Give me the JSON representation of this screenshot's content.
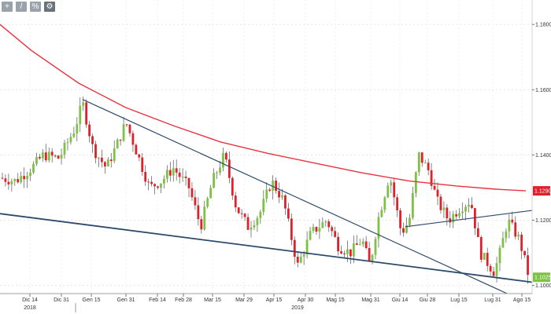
{
  "toolbar": [
    {
      "name": "crosshair-icon",
      "glyph": "+"
    },
    {
      "name": "draw-line-icon",
      "glyph": "/"
    },
    {
      "name": "annotate-icon",
      "glyph": "%"
    },
    {
      "name": "settings-icon",
      "glyph": "⚙"
    }
  ],
  "chart_data": {
    "type": "candlestick",
    "y_ticks": [
      "1.1800",
      "1.1600",
      "1.1400",
      "1.1200",
      "1.1000"
    ],
    "y_tick_values": [
      1.18,
      1.16,
      1.14,
      1.12,
      1.1
    ],
    "ylim": [
      1.0975,
      1.1875
    ],
    "x_ticks": [
      "Dic 14",
      "Dic 31",
      "Gen 15",
      "Gen 31",
      "Feb 14",
      "Feb 28",
      "Mar 15",
      "Mar 29",
      "Apr 15",
      "Apr 30",
      "Mag 15",
      "Mag 31",
      "Giu 14",
      "Giu 28",
      "Lug 15",
      "Lug 31",
      "Ago 15"
    ],
    "years": [
      "2018",
      "2019"
    ],
    "price_badges": [
      {
        "label": "1.1290",
        "value": 1.129,
        "color": "#e0202a"
      },
      {
        "label": "1.1025",
        "value": 1.1025,
        "color": "#7ec242"
      }
    ],
    "moving_average": {
      "color": "#e8333f",
      "points": [
        [
          0,
          1.18
        ],
        [
          40,
          1.172
        ],
        [
          100,
          1.162
        ],
        [
          160,
          1.1545
        ],
        [
          220,
          1.149
        ],
        [
          280,
          1.144
        ],
        [
          340,
          1.1405
        ],
        [
          400,
          1.1375
        ],
        [
          460,
          1.1345
        ],
        [
          520,
          1.132
        ],
        [
          580,
          1.1305
        ],
        [
          630,
          1.1295
        ],
        [
          668,
          1.129
        ]
      ]
    },
    "trendlines": [
      {
        "name": "upper-downtrend",
        "from": [
          105,
          1.157
        ],
        "to": [
          676,
          1.094
        ]
      },
      {
        "name": "lower-support",
        "from": [
          0,
          1.122
        ],
        "to": [
          676,
          1.101
        ]
      },
      {
        "name": "triangle-top",
        "from": [
          515,
          1.118
        ],
        "to": [
          676,
          1.123
        ]
      }
    ],
    "candles_seed": {
      "start": 1.133,
      "count": 170,
      "x_start": 3,
      "x_step": 3.95
    }
  }
}
